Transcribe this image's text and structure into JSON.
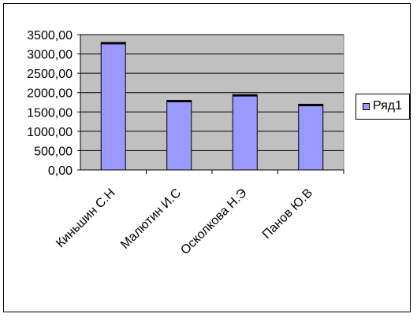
{
  "chart_data": {
    "type": "bar",
    "categories": [
      "Киньшин С.Н",
      "Малютин И.С",
      "Осколкова Н.Э",
      "Панов Ю.В"
    ],
    "series": [
      {
        "name": "Ряд1",
        "values": [
          3300,
          1800,
          1950,
          1700
        ]
      }
    ],
    "yticks": [
      "0,00",
      "500,00",
      "1000,00",
      "1500,00",
      "2000,00",
      "2500,00",
      "3000,00",
      "3500,00"
    ],
    "ylim": [
      0,
      3500
    ],
    "grid": true,
    "legend_position": "right",
    "colors": {
      "bar": "#9999ff",
      "plot_background": "#c0c0c0",
      "gridline": "#000000"
    }
  }
}
